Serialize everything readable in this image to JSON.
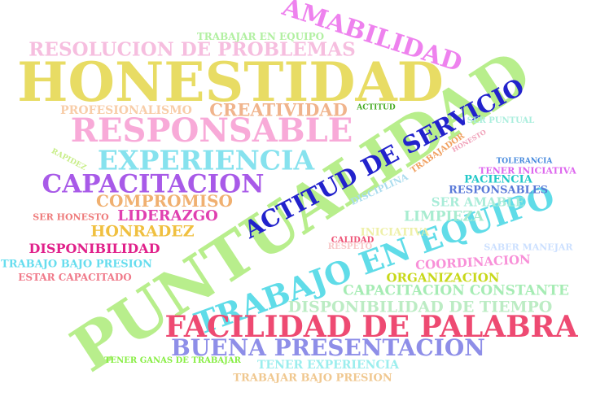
{
  "words": [
    {
      "text": "PUNTUALIDAD"
    },
    {
      "text": "HONESTIDAD"
    },
    {
      "text": ""
    },
    {
      "text": "RESOLUCION DE PROBLEMAS"
    },
    {
      "text": "AMABILIDAD"
    },
    {
      "text": "TRABAJAR EN EQUIPO"
    },
    {
      "text": "RESPONSABLE"
    },
    {
      "text": "CREATIVIDAD"
    },
    {
      "text": "PROFESIONALISMO"
    },
    {
      "text": "ACTITUD"
    },
    {
      "text": "EXPERIENCIA"
    },
    {
      "text": "CAPACITACION"
    },
    {
      "text": "ACTITUD DE SERVICIO"
    },
    {
      "text": "COMPROMISO"
    },
    {
      "text": "SER HONESTO"
    },
    {
      "text": "LIDERAZGO"
    },
    {
      "text": "HONRADEZ"
    },
    {
      "text": "DISPONIBILIDAD"
    },
    {
      "text": "TRABAJO BAJO PRESION"
    },
    {
      "text": "ESTAR CAPACITADO"
    },
    {
      "text": "TRABAJO EN EQUIPO"
    },
    {
      "text": "LIMPIEZA"
    },
    {
      "text": "SER AMABLE"
    },
    {
      "text": "RESPONSABLES"
    },
    {
      "text": "PACIENCIA"
    },
    {
      "text": "TENER INICIATIVA"
    },
    {
      "text": "TOLERANCIA"
    },
    {
      "text": "SER PUNTUAL"
    },
    {
      "text": "HONESTO"
    },
    {
      "text": "TRABAJADOR"
    },
    {
      "text": "DISCIPLINA"
    },
    {
      "text": "RAPIDEZ"
    },
    {
      "text": "INICIATIVA"
    },
    {
      "text": "CALIDAD"
    },
    {
      "text": "RESPETO"
    },
    {
      "text": "SABER MANEJAR"
    },
    {
      "text": "COORDINACION"
    },
    {
      "text": "ORGANIZACION"
    },
    {
      "text": "CAPACITACION CONSTANTE"
    },
    {
      "text": "DISPONIBILIDAD DE TIEMPO"
    },
    {
      "text": "FACILIDAD DE PALABRA"
    },
    {
      "text": "BUENA PRESENTACION"
    },
    {
      "text": "TENER GANAS DE TRABAJAR"
    },
    {
      "text": "TENER EXPERIENCIA"
    },
    {
      "text": "TRABAJAR BAJO PRESION"
    }
  ]
}
